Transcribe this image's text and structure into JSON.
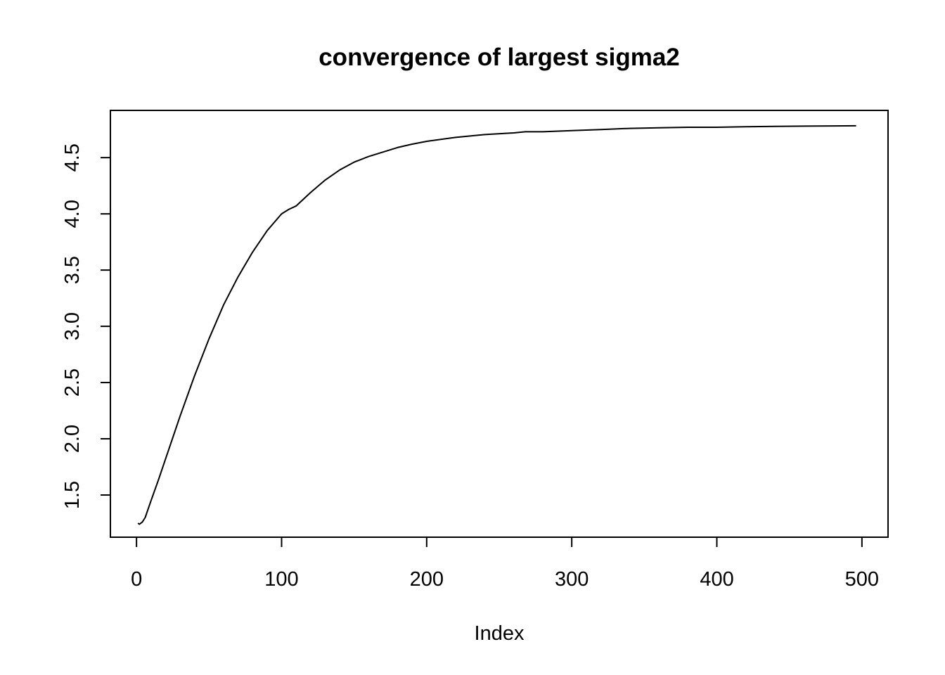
{
  "chart_data": {
    "type": "line",
    "title": "convergence of largest sigma2",
    "xlabel": "Index",
    "ylabel": "",
    "xlim": [
      -18,
      518
    ],
    "ylim": [
      1.125,
      4.92
    ],
    "x_axis_range": [
      0,
      500
    ],
    "y_axis_range": [
      1.5,
      4.5
    ],
    "x_ticks": [
      0,
      100,
      200,
      300,
      400,
      500
    ],
    "x_tick_labels": [
      "0",
      "100",
      "200",
      "300",
      "400",
      "500"
    ],
    "y_ticks": [
      1.5,
      2.0,
      2.5,
      3.0,
      3.5,
      4.0,
      4.5
    ],
    "y_tick_labels": [
      "1.5",
      "2.0",
      "2.5",
      "3.0",
      "3.5",
      "4.0",
      "4.5"
    ],
    "grid": false,
    "legend": "none",
    "series": [
      {
        "color": "#000000",
        "x": [
          1,
          2,
          4,
          6,
          10,
          15,
          20,
          30,
          40,
          50,
          60,
          70,
          80,
          90,
          100,
          105,
          110,
          120,
          130,
          140,
          150,
          160,
          170,
          180,
          190,
          200,
          220,
          240,
          260,
          268,
          280,
          300,
          320,
          340,
          360,
          380,
          400,
          420,
          440,
          460,
          480,
          496
        ],
        "y": [
          1.25,
          1.24,
          1.26,
          1.3,
          1.45,
          1.63,
          1.82,
          2.2,
          2.56,
          2.89,
          3.19,
          3.44,
          3.66,
          3.85,
          4.0,
          4.04,
          4.07,
          4.19,
          4.3,
          4.39,
          4.46,
          4.51,
          4.55,
          4.59,
          4.62,
          4.645,
          4.68,
          4.705,
          4.72,
          4.73,
          4.73,
          4.74,
          4.75,
          4.76,
          4.765,
          4.77,
          4.77,
          4.775,
          4.778,
          4.78,
          4.782,
          4.783
        ]
      }
    ]
  }
}
